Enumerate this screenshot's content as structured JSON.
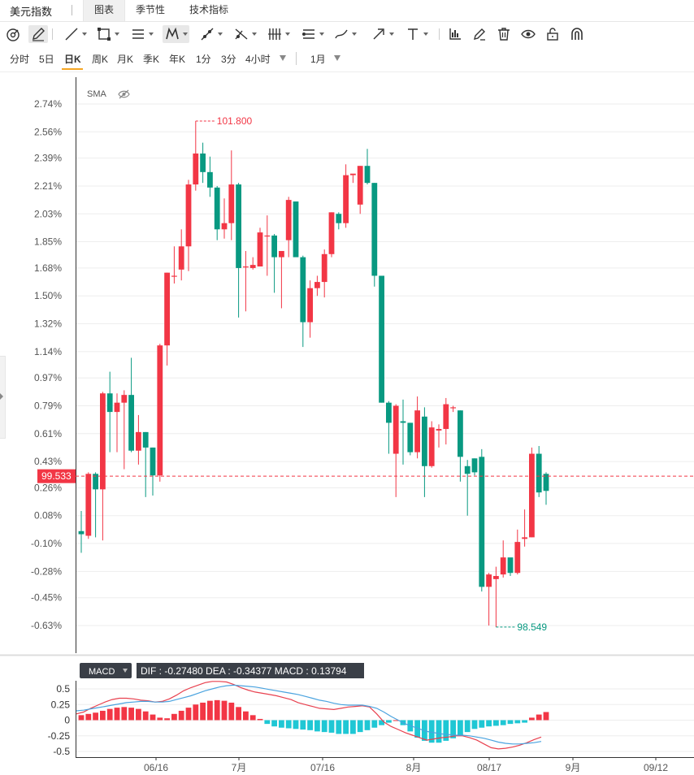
{
  "header": {
    "title": "美元指数",
    "tabs": [
      {
        "label": "图表",
        "active": true
      },
      {
        "label": "季节性",
        "active": false
      },
      {
        "label": "技术指标",
        "active": false
      }
    ]
  },
  "toolbar": {
    "icons": [
      "circle-settings-icon",
      "pencil-icon",
      "trend-line-icon",
      "rectangle-icon",
      "parallel-lines-icon",
      "pattern-icon",
      "ray-icon",
      "fork-icon",
      "bars-icon",
      "fib-icon",
      "brush-icon",
      "arrow-icon",
      "text-icon",
      "bar-chart-icon",
      "edit-icon",
      "trash-icon",
      "eye-icon",
      "lock-icon",
      "magnet-icon"
    ]
  },
  "periods": {
    "items": [
      "分时",
      "5日",
      "日K",
      "周K",
      "月K",
      "季K",
      "年K",
      "1分",
      "3分",
      "4小时"
    ],
    "active": "日K",
    "range": "1月"
  },
  "colors": {
    "up": "#f23645",
    "down": "#089981",
    "ma_dif": "#e8414f",
    "ma_dea": "#4aa3df",
    "grid": "#eeeeee"
  },
  "chart_data": {
    "type": "candlestick",
    "indicator_label": "SMA",
    "current_price": "99.533",
    "high_label": "101.800",
    "low_label": "98.549",
    "y_ticks": [
      "2.74%",
      "2.56%",
      "2.39%",
      "2.21%",
      "2.03%",
      "1.85%",
      "1.68%",
      "1.50%",
      "1.32%",
      "1.14%",
      "0.97%",
      "0.79%",
      "0.61%",
      "0.43%",
      "0.26%",
      "0.08%",
      "-0.10%",
      "-0.28%",
      "-0.45%",
      "-0.63%"
    ],
    "x_ticks": [
      "06/16",
      "7月",
      "07/16",
      "8月",
      "08/17",
      "9月",
      "09/12"
    ],
    "candles": [
      {
        "o": -0.02,
        "h": 0.11,
        "l": -0.16,
        "c": -0.04
      },
      {
        "o": -0.05,
        "h": 0.36,
        "l": -0.07,
        "c": 0.35
      },
      {
        "o": 0.35,
        "h": 0.36,
        "l": -0.06,
        "c": 0.25
      },
      {
        "o": 0.25,
        "h": 0.88,
        "l": -0.08,
        "c": 0.87
      },
      {
        "o": 0.87,
        "h": 1.01,
        "l": 0.49,
        "c": 0.75
      },
      {
        "o": 0.75,
        "h": 0.87,
        "l": 0.49,
        "c": 0.81
      },
      {
        "o": 0.81,
        "h": 0.89,
        "l": 0.38,
        "c": 0.86
      },
      {
        "o": 0.86,
        "h": 1.1,
        "l": 0.49,
        "c": 0.5
      },
      {
        "o": 0.5,
        "h": 0.73,
        "l": 0.41,
        "c": 0.62
      },
      {
        "o": 0.62,
        "h": 0.62,
        "l": 0.2,
        "c": 0.52
      },
      {
        "o": 0.52,
        "h": 0.52,
        "l": 0.21,
        "c": 0.34
      },
      {
        "o": 0.34,
        "h": 1.19,
        "l": 0.3,
        "c": 1.18
      },
      {
        "o": 1.18,
        "h": 1.65,
        "l": 1.05,
        "c": 1.65
      },
      {
        "o": 1.63,
        "h": 1.82,
        "l": 1.58,
        "c": 1.63
      },
      {
        "o": 1.67,
        "h": 1.93,
        "l": 1.6,
        "c": 1.82
      },
      {
        "o": 1.82,
        "h": 2.25,
        "l": 1.66,
        "c": 2.22
      },
      {
        "o": 2.22,
        "h": 2.63,
        "l": 2.18,
        "c": 2.42
      },
      {
        "o": 2.42,
        "h": 2.49,
        "l": 2.23,
        "c": 2.3
      },
      {
        "o": 2.3,
        "h": 2.4,
        "l": 2.14,
        "c": 2.2
      },
      {
        "o": 2.2,
        "h": 2.21,
        "l": 1.86,
        "c": 1.93
      },
      {
        "o": 1.93,
        "h": 2.13,
        "l": 1.87,
        "c": 1.97
      },
      {
        "o": 1.97,
        "h": 2.44,
        "l": 1.86,
        "c": 2.22
      },
      {
        "o": 2.22,
        "h": 2.23,
        "l": 1.36,
        "c": 1.68
      },
      {
        "o": 1.69,
        "h": 1.79,
        "l": 1.4,
        "c": 1.69
      },
      {
        "o": 1.68,
        "h": 1.75,
        "l": 1.67,
        "c": 1.7
      },
      {
        "o": 1.69,
        "h": 1.94,
        "l": 1.69,
        "c": 1.91
      },
      {
        "o": 1.89,
        "h": 2.02,
        "l": 1.63,
        "c": 1.89
      },
      {
        "o": 1.89,
        "h": 1.9,
        "l": 1.52,
        "c": 1.75
      },
      {
        "o": 1.75,
        "h": 1.76,
        "l": 1.42,
        "c": 1.79
      },
      {
        "o": 1.86,
        "h": 2.14,
        "l": 1.75,
        "c": 2.12
      },
      {
        "o": 2.11,
        "h": 2.11,
        "l": 1.77,
        "c": 1.75
      },
      {
        "o": 1.75,
        "h": 1.76,
        "l": 1.17,
        "c": 1.33
      },
      {
        "o": 1.33,
        "h": 1.6,
        "l": 1.23,
        "c": 1.55
      },
      {
        "o": 1.55,
        "h": 1.63,
        "l": 1.5,
        "c": 1.59
      },
      {
        "o": 1.59,
        "h": 1.8,
        "l": 1.49,
        "c": 1.77
      },
      {
        "o": 1.77,
        "h": 2.04,
        "l": 1.75,
        "c": 2.04
      },
      {
        "o": 2.03,
        "h": 2.04,
        "l": 1.93,
        "c": 1.97
      },
      {
        "o": 1.97,
        "h": 2.35,
        "l": 1.94,
        "c": 2.28
      },
      {
        "o": 2.28,
        "h": 2.28,
        "l": 2.23,
        "c": 2.29
      },
      {
        "o": 2.09,
        "h": 2.34,
        "l": 2.03,
        "c": 2.34
      },
      {
        "o": 2.34,
        "h": 2.45,
        "l": 2.22,
        "c": 2.23
      },
      {
        "o": 2.23,
        "h": 2.23,
        "l": 1.56,
        "c": 1.63
      },
      {
        "o": 1.63,
        "h": 1.63,
        "l": 0.81,
        "c": 0.81
      },
      {
        "o": 0.81,
        "h": 0.82,
        "l": 0.48,
        "c": 0.68
      },
      {
        "o": 0.48,
        "h": 0.8,
        "l": 0.2,
        "c": 0.79
      },
      {
        "o": 0.69,
        "h": 0.83,
        "l": 0.41,
        "c": 0.68
      },
      {
        "o": 0.68,
        "h": 0.68,
        "l": 0.47,
        "c": 0.49
      },
      {
        "o": 0.49,
        "h": 0.85,
        "l": 0.45,
        "c": 0.76
      },
      {
        "o": 0.72,
        "h": 0.78,
        "l": 0.2,
        "c": 0.4
      },
      {
        "o": 0.4,
        "h": 0.69,
        "l": 0.39,
        "c": 0.65
      },
      {
        "o": 0.63,
        "h": 0.67,
        "l": 0.52,
        "c": 0.64
      },
      {
        "o": 0.64,
        "h": 0.84,
        "l": 0.54,
        "c": 0.8
      },
      {
        "o": 0.78,
        "h": 0.79,
        "l": 0.75,
        "c": 0.78
      },
      {
        "o": 0.76,
        "h": 0.76,
        "l": 0.3,
        "c": 0.46
      },
      {
        "o": 0.4,
        "h": 0.44,
        "l": 0.08,
        "c": 0.35
      },
      {
        "o": 0.45,
        "h": 0.45,
        "l": 0.34,
        "c": 0.36
      },
      {
        "o": 0.46,
        "h": 0.51,
        "l": -0.41,
        "c": -0.38
      },
      {
        "o": -0.38,
        "h": -0.29,
        "l": -0.63,
        "c": -0.3
      },
      {
        "o": -0.33,
        "h": -0.25,
        "l": -0.64,
        "c": -0.31
      },
      {
        "o": -0.3,
        "h": -0.08,
        "l": -0.32,
        "c": -0.19
      },
      {
        "o": -0.19,
        "h": -0.2,
        "l": -0.31,
        "c": -0.29
      },
      {
        "o": -0.29,
        "h": -0.01,
        "l": -0.3,
        "c": -0.09
      },
      {
        "o": -0.07,
        "h": 0.12,
        "l": -0.12,
        "c": -0.06
      },
      {
        "o": -0.06,
        "h": 0.52,
        "l": -0.06,
        "c": 0.48
      },
      {
        "o": 0.48,
        "h": 0.53,
        "l": 0.2,
        "c": 0.23
      },
      {
        "o": 0.35,
        "h": 0.36,
        "l": 0.15,
        "c": 0.24
      }
    ],
    "macd": {
      "label": "MACD",
      "readout": "DIF : -0.27480   DEA : -0.34377   MACD : 0.13794",
      "y_ticks": [
        "0.5",
        "0.25",
        "0",
        "-0.25",
        "-0.5"
      ],
      "hist": [
        0.08,
        0.1,
        0.12,
        0.15,
        0.18,
        0.2,
        0.21,
        0.2,
        0.18,
        0.14,
        0.09,
        0.04,
        0.03,
        0.1,
        0.15,
        0.2,
        0.25,
        0.28,
        0.31,
        0.32,
        0.31,
        0.28,
        0.21,
        0.14,
        0.08,
        0.02,
        -0.06,
        -0.1,
        -0.12,
        -0.13,
        -0.14,
        -0.15,
        -0.16,
        -0.18,
        -0.19,
        -0.2,
        -0.22,
        -0.22,
        -0.22,
        -0.19,
        -0.16,
        -0.12,
        -0.08,
        -0.04,
        0.0,
        -0.08,
        -0.18,
        -0.28,
        -0.33,
        -0.36,
        -0.36,
        -0.33,
        -0.29,
        -0.24,
        -0.19,
        -0.14,
        -0.12,
        -0.1,
        -0.09,
        -0.08,
        -0.06,
        -0.05,
        -0.04,
        0.04,
        0.09,
        0.13
      ],
      "dif": [
        0.1,
        0.13,
        0.19,
        0.24,
        0.29,
        0.33,
        0.35,
        0.35,
        0.34,
        0.32,
        0.31,
        0.29,
        0.3,
        0.34,
        0.4,
        0.47,
        0.52,
        0.56,
        0.6,
        0.62,
        0.62,
        0.61,
        0.57,
        0.52,
        0.48,
        0.45,
        0.43,
        0.41,
        0.39,
        0.36,
        0.33,
        0.28,
        0.25,
        0.22,
        0.19,
        0.18,
        0.17,
        0.19,
        0.21,
        0.22,
        0.23,
        0.21,
        0.1,
        -0.03,
        -0.1,
        -0.15,
        -0.2,
        -0.24,
        -0.28,
        -0.32,
        -0.3,
        -0.28,
        -0.27,
        -0.25,
        -0.25,
        -0.28,
        -0.32,
        -0.38,
        -0.44,
        -0.46,
        -0.45,
        -0.43,
        -0.4,
        -0.36,
        -0.31,
        -0.27
      ],
      "dea": [
        0.15,
        0.16,
        0.18,
        0.2,
        0.22,
        0.24,
        0.26,
        0.28,
        0.29,
        0.3,
        0.3,
        0.29,
        0.29,
        0.3,
        0.33,
        0.36,
        0.39,
        0.43,
        0.47,
        0.5,
        0.53,
        0.55,
        0.56,
        0.55,
        0.54,
        0.53,
        0.51,
        0.49,
        0.47,
        0.45,
        0.43,
        0.41,
        0.38,
        0.35,
        0.32,
        0.3,
        0.27,
        0.25,
        0.24,
        0.24,
        0.24,
        0.22,
        0.19,
        0.13,
        0.06,
        0.0,
        -0.06,
        -0.1,
        -0.14,
        -0.18,
        -0.2,
        -0.22,
        -0.23,
        -0.24,
        -0.24,
        -0.25,
        -0.27,
        -0.29,
        -0.32,
        -0.35,
        -0.37,
        -0.38,
        -0.38,
        -0.37,
        -0.36,
        -0.34
      ]
    }
  }
}
